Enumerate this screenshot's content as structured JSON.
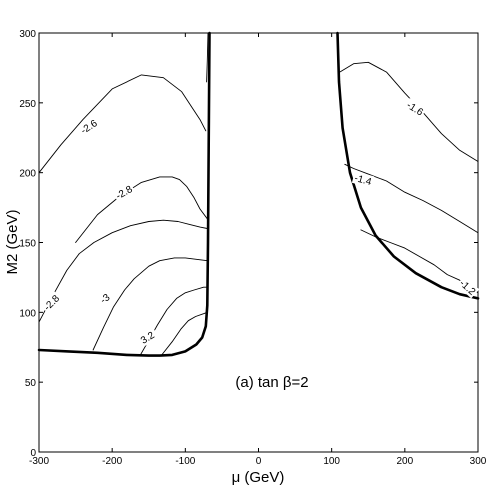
{
  "chart_data": {
    "type": "line",
    "title": "",
    "xlabel": "μ (GeV)",
    "ylabel": "M2 (GeV)",
    "xlim": [
      -300,
      300
    ],
    "ylim": [
      0,
      300
    ],
    "xticks": [
      "-300",
      "-200",
      "-100",
      "0",
      "100",
      "200",
      "300"
    ],
    "yticks": [
      "0",
      "50",
      "100",
      "150",
      "200",
      "250",
      "300"
    ],
    "annotation": "(a) tan β=2",
    "grid": false,
    "series": [
      {
        "label": "-2.6",
        "label_at": [
          -232,
          233
        ],
        "label_rot": -33,
        "bold": false,
        "points": [
          [
            -300,
            200
          ],
          [
            -270,
            220
          ],
          [
            -240,
            238
          ],
          [
            -200,
            260
          ],
          [
            -160,
            270
          ],
          [
            -130,
            268
          ],
          [
            -105,
            258
          ],
          [
            -90,
            246
          ],
          [
            -80,
            238
          ],
          [
            -72,
            230
          ]
        ]
      },
      {
        "label": "-2.8",
        "label_at": [
          -184,
          186
        ],
        "label_rot": -30,
        "bold": false,
        "points": [
          [
            -250,
            150
          ],
          [
            -220,
            170
          ],
          [
            -190,
            183
          ],
          [
            -160,
            193
          ],
          [
            -135,
            197
          ],
          [
            -118,
            197
          ],
          [
            -108,
            195
          ],
          [
            -98,
            190
          ],
          [
            -88,
            182
          ],
          [
            -80,
            174
          ],
          [
            -70,
            167
          ]
        ]
      },
      {
        "label": "-2.8",
        "label_at": [
          -283,
          107
        ],
        "label_rot": -45,
        "bold": false,
        "points": [
          [
            -300,
            93
          ],
          [
            -280,
            113
          ],
          [
            -262,
            130
          ],
          [
            -245,
            142
          ],
          [
            -225,
            150
          ],
          [
            -200,
            157
          ],
          [
            -175,
            162
          ],
          [
            -150,
            165
          ],
          [
            -130,
            166
          ],
          [
            -110,
            165
          ],
          [
            -95,
            163
          ],
          [
            -80,
            161
          ],
          [
            -70,
            160
          ]
        ]
      },
      {
        "label": "-3",
        "label_at": [
          -210,
          110
        ],
        "label_rot": -36,
        "bold": false,
        "points": [
          [
            -226,
            73
          ],
          [
            -212,
            89
          ],
          [
            -198,
            104
          ],
          [
            -183,
            116
          ],
          [
            -170,
            124
          ],
          [
            -150,
            133
          ],
          [
            -135,
            137
          ],
          [
            -115,
            139
          ],
          [
            -100,
            139
          ],
          [
            -85,
            138
          ],
          [
            -70,
            137
          ]
        ]
      },
      {
        "label": "3.2",
        "label_at": [
          -152,
          82
        ],
        "label_rot": -32,
        "bold": false,
        "points": [
          [
            -162,
            69
          ],
          [
            -150,
            80
          ],
          [
            -138,
            91
          ],
          [
            -125,
            102
          ],
          [
            -112,
            110
          ],
          [
            -100,
            114
          ],
          [
            -88,
            116
          ],
          [
            -75,
            118
          ],
          [
            -70,
            118
          ]
        ]
      },
      {
        "label": "",
        "bold": false,
        "points": [
          [
            -133,
            69
          ],
          [
            -118,
            79
          ],
          [
            -106,
            88
          ],
          [
            -96,
            94
          ],
          [
            -86,
            97
          ],
          [
            -75,
            99
          ],
          [
            -70,
            100
          ]
        ]
      },
      {
        "label": "-1.6",
        "label_at": [
          214,
          246
        ],
        "label_rot": 32,
        "bold": false,
        "points": [
          [
            111,
            272
          ],
          [
            130,
            278
          ],
          [
            150,
            279
          ],
          [
            175,
            272
          ],
          [
            200,
            257
          ],
          [
            225,
            243
          ],
          [
            250,
            228
          ],
          [
            275,
            216
          ],
          [
            300,
            208
          ]
        ]
      },
      {
        "label": "-1.4",
        "label_at": [
          143,
          195
        ],
        "label_rot": 15,
        "bold": false,
        "points": [
          [
            118,
            206
          ],
          [
            130,
            203
          ],
          [
            150,
            199
          ],
          [
            175,
            194
          ],
          [
            200,
            186
          ],
          [
            225,
            180
          ],
          [
            250,
            173
          ],
          [
            275,
            165
          ],
          [
            300,
            157
          ]
        ]
      },
      {
        "label": "-1.2",
        "label_at": [
          286,
          118
        ],
        "label_rot": 42,
        "bold": false,
        "points": [
          [
            140,
            159
          ],
          [
            160,
            154
          ],
          [
            180,
            150
          ],
          [
            200,
            146
          ],
          [
            220,
            140
          ],
          [
            240,
            134
          ],
          [
            258,
            127
          ],
          [
            275,
            123
          ],
          [
            300,
            114
          ]
        ]
      },
      {
        "label": "",
        "bold": true,
        "points": [
          [
            -300,
            73
          ],
          [
            -260,
            72
          ],
          [
            -220,
            71
          ],
          [
            -180,
            69.5
          ],
          [
            -150,
            69
          ],
          [
            -135,
            69
          ],
          [
            -118,
            69.5
          ],
          [
            -100,
            72
          ],
          [
            -85,
            77
          ],
          [
            -77,
            82
          ],
          [
            -72,
            90
          ],
          [
            -70,
            105
          ],
          [
            -69,
            150
          ],
          [
            -68,
            220
          ],
          [
            -67,
            300
          ]
        ]
      },
      {
        "label": "",
        "bold": false,
        "points": [
          [
            -71,
            265
          ],
          [
            -70,
            280
          ],
          [
            -69,
            300
          ]
        ]
      },
      {
        "label": "",
        "bold": true,
        "points": [
          [
            108,
            300
          ],
          [
            110,
            265
          ],
          [
            115,
            232
          ],
          [
            125,
            200
          ],
          [
            140,
            175
          ],
          [
            160,
            155
          ],
          [
            185,
            140
          ],
          [
            215,
            128
          ],
          [
            250,
            118
          ],
          [
            275,
            113
          ],
          [
            300,
            110
          ]
        ]
      }
    ]
  }
}
